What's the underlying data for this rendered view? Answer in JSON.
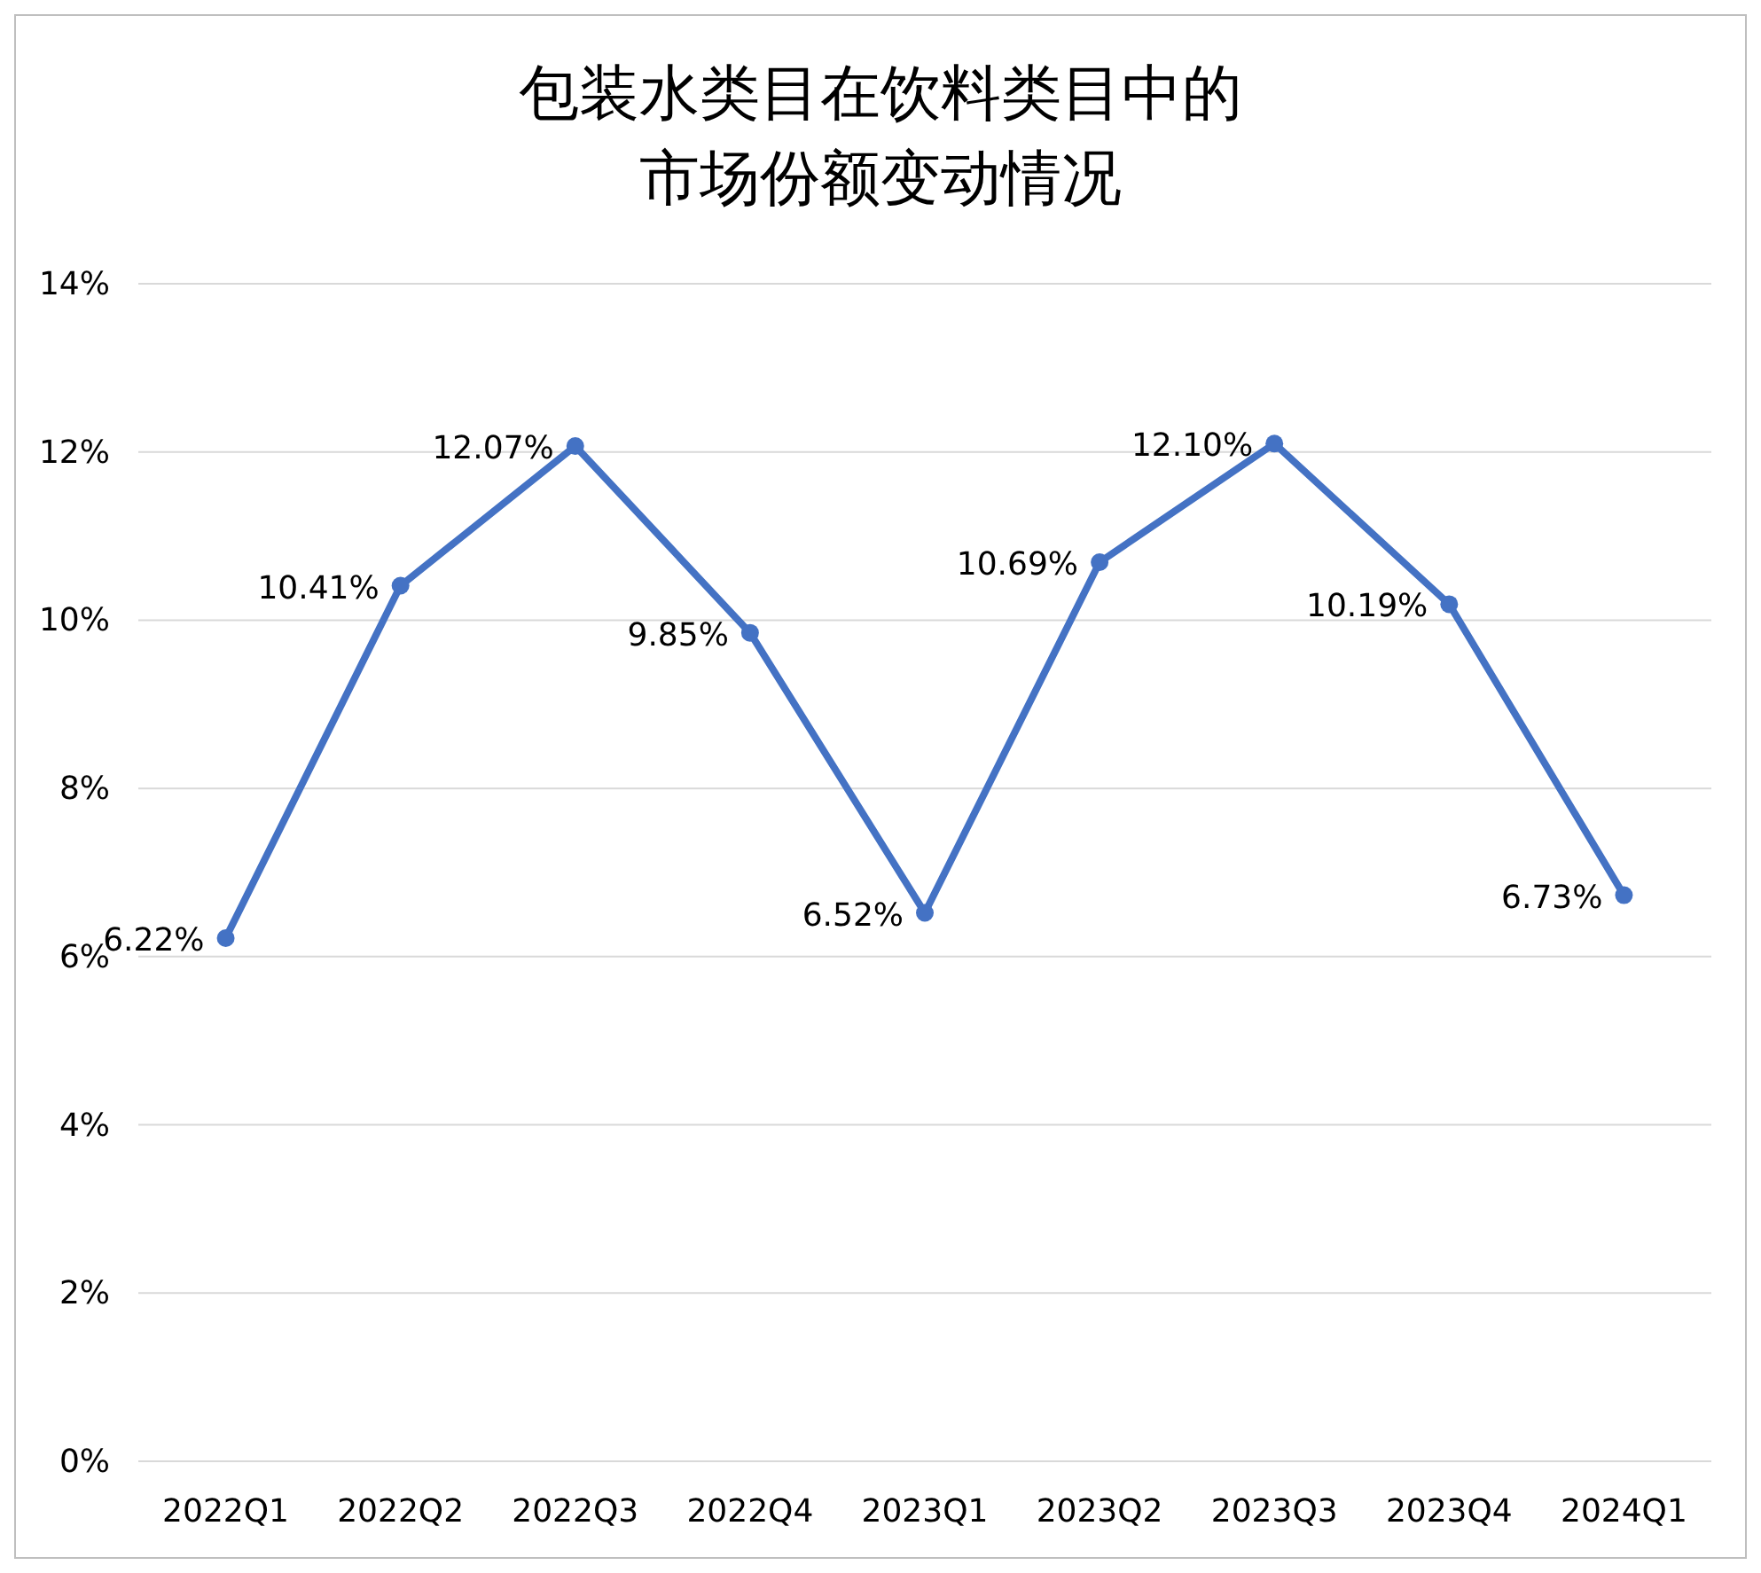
{
  "chart_data": {
    "type": "line",
    "title": "包装水类目在饮料类目中的市场份额变动情况",
    "categories": [
      "2022Q1",
      "2022Q2",
      "2022Q3",
      "2022Q4",
      "2023Q1",
      "2023Q2",
      "2023Q3",
      "2023Q4",
      "2024Q1"
    ],
    "series": [
      {
        "color": "#4472c4",
        "values": [
          6.22,
          10.41,
          12.07,
          9.85,
          6.52,
          10.69,
          12.1,
          10.19,
          6.73
        ],
        "value_labels": [
          "6.22%",
          "10.41%",
          "12.07%",
          "9.85%",
          "6.52%",
          "10.69%",
          "12.10%",
          "10.19%",
          "6.73%"
        ]
      }
    ],
    "ylim": [
      0,
      14
    ],
    "yticks": [
      {
        "value": 0,
        "label": "0%"
      },
      {
        "value": 2,
        "label": "2%"
      },
      {
        "value": 4,
        "label": "4%"
      },
      {
        "value": 6,
        "label": "6%"
      },
      {
        "value": 8,
        "label": "8%"
      },
      {
        "value": 10,
        "label": "10%"
      },
      {
        "value": 12,
        "label": "12%"
      },
      {
        "value": 14,
        "label": "14%"
      }
    ],
    "grid": "y",
    "marker": "circle",
    "line_style": "solid"
  }
}
